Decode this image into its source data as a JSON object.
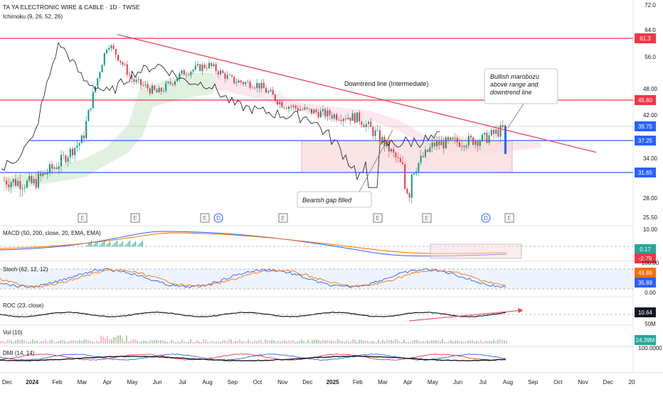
{
  "header": {
    "title": "TA YA ELECTRONIC WIRE & CABLE · 1D · TWSE",
    "indicator": "Ichimoku (9, 26, 52, 26)"
  },
  "chart_data": {
    "type": "line",
    "price_axis_ticks": [
      {
        "value": 72.0,
        "label": "72.0"
      },
      {
        "value": 64.0,
        "label": "64.0"
      },
      {
        "value": 56.0,
        "label": "56.0"
      },
      {
        "value": 48.0,
        "label": "48.00"
      },
      {
        "value": 42.0,
        "label": "42.00"
      },
      {
        "value": 34.0,
        "label": "34.00"
      },
      {
        "value": 28.0,
        "label": "28.00"
      },
      {
        "value": 25.5,
        "label": "25.50"
      }
    ],
    "price_levels": [
      {
        "value": 61.3,
        "label": "61.3",
        "color": "#f23645",
        "role": "resistance"
      },
      {
        "value": 45.6,
        "label": "45.60",
        "color": "#f23645",
        "role": "resistance"
      },
      {
        "value": 39.75,
        "label": "39.75",
        "color": "#2962ff",
        "role": "last-price"
      },
      {
        "value": 37.25,
        "label": "37.25",
        "color": "#2962ff",
        "role": "support"
      },
      {
        "value": 31.65,
        "label": "31.65",
        "color": "#2962ff",
        "role": "support"
      }
    ],
    "x_axis": [
      "Dec",
      "2024",
      "Feb",
      "Mar",
      "Apr",
      "May",
      "Jun",
      "Jul",
      "Aug",
      "Sep",
      "Oct",
      "Nov",
      "Dec",
      "2025",
      "Feb",
      "Mar",
      "Apr",
      "May",
      "Jun",
      "Jul",
      "Aug",
      "Sep",
      "Oct",
      "Nov",
      "Dec",
      "20"
    ],
    "price_series": {
      "name": "",
      "color": "#089981",
      "dates": [
        "2023-12",
        "2024-01",
        "2024-02",
        "2024-03",
        "2024-04",
        "2024-05",
        "2024-06",
        "2024-07",
        "2024-08",
        "2024-09",
        "2024-10",
        "2024-11",
        "2024-12",
        "2025-01",
        "2025-02",
        "2025-03",
        "2025-04",
        "2025-05",
        "2025-06",
        "2025-07",
        "2025-08"
      ],
      "values": [
        30.5,
        30.0,
        33.0,
        37.5,
        60.0,
        50.0,
        47.0,
        52.0,
        54.0,
        50.0,
        49.0,
        44.5,
        43.0,
        42.0,
        41.5,
        37.0,
        31.0,
        36.5,
        37.0,
        37.5,
        39.75
      ]
    },
    "events_row": [
      "E",
      "E",
      "E",
      "D",
      "E",
      "E",
      "E",
      "D",
      "E"
    ],
    "annotations": [
      "Downtrend line (Intermediate)",
      "Bullish marobozu above range and downtrend line",
      "Bearish gap filled"
    ],
    "macd": {
      "label": "MACD (50, 200, close, 20, EMA, EMA)",
      "value": "0.17",
      "value2": "-2.79",
      "ticks": [
        "10.00",
        "0.00"
      ]
    },
    "stoch": {
      "label": "Stoch (62, 12, 12)",
      "k": "49.88",
      "d": "35.89",
      "ticks": [
        "100.00",
        "0.00"
      ]
    },
    "roc": {
      "label": "ROC (23, close)",
      "value": "10.64"
    },
    "vol": {
      "label": "Vol (10)",
      "value": "24.39M",
      "tick": "50M"
    },
    "dmi": {
      "label": "DMI (14, 14)",
      "tick": "100.0000"
    }
  },
  "colors": {
    "up": "#089981",
    "down": "#f23645",
    "resistance": "#f23645",
    "support": "#2962ff",
    "trend": "#f23645"
  }
}
